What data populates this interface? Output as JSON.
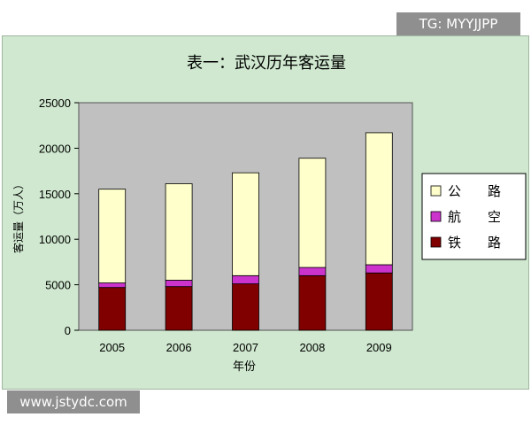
{
  "watermarks": {
    "top": "TG: MYYJJPP",
    "bottom": "www.jstydc.com"
  },
  "chart_data": {
    "type": "bar",
    "stacked": true,
    "title": "表一：武汉历年客运量",
    "xlabel": "年份",
    "ylabel": "客运量（万人）",
    "categories": [
      "2005",
      "2006",
      "2007",
      "2008",
      "2009"
    ],
    "ylim": [
      0,
      25000
    ],
    "yticks": [
      0,
      5000,
      10000,
      15000,
      20000,
      25000
    ],
    "grid": false,
    "legend_position": "right",
    "colors": {
      "公路": "#ffffcc",
      "航空": "#cc33cc",
      "铁路": "#800000",
      "plot_bg": "#c0c0c0",
      "outer_bg": "#cfe8cf"
    },
    "series": [
      {
        "name": "铁路",
        "legend_label": "铁　　路",
        "values": [
          4700,
          4800,
          5100,
          6000,
          6300
        ]
      },
      {
        "name": "航空",
        "legend_label": "航　　空",
        "values": [
          500,
          700,
          900,
          900,
          900
        ]
      },
      {
        "name": "公路",
        "legend_label": "公　　路",
        "values": [
          10300,
          10600,
          11300,
          12000,
          14500
        ]
      }
    ]
  }
}
